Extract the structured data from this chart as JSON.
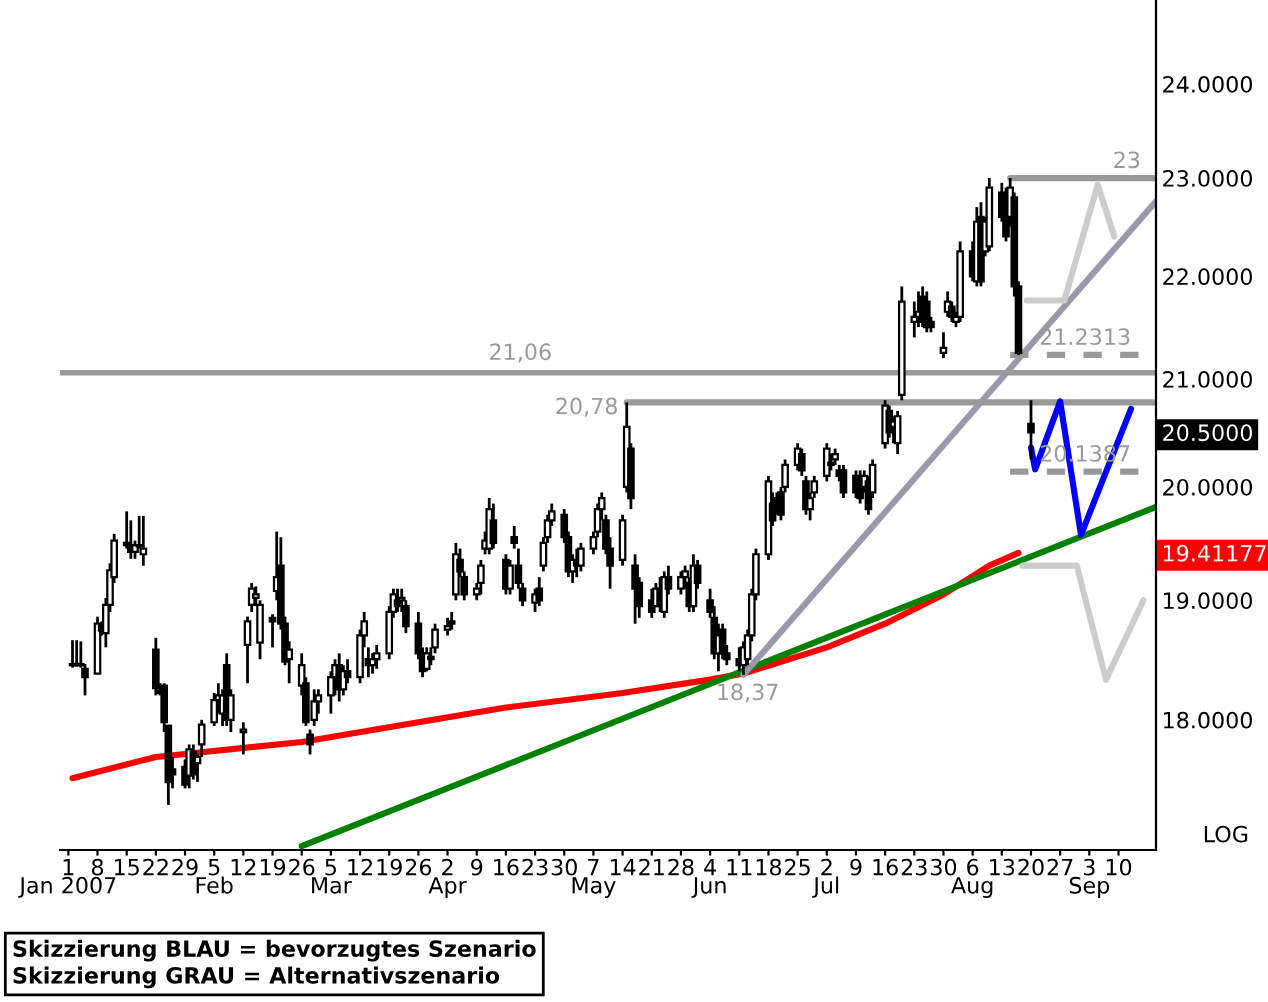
{
  "chart_data": {
    "type": "candlestick",
    "color": "#000000",
    "log": true,
    "grid": false,
    "ylim": [
      16.97,
      24.93
    ],
    "yticks": [
      {
        "value": 18,
        "label": "18.0000"
      },
      {
        "value": 19,
        "label": "19.0000"
      },
      {
        "value": 19.41177,
        "label": "19.41177"
      },
      {
        "value": 20,
        "label": "20.0000"
      },
      {
        "value": 20.5,
        "label": "20.5000"
      },
      {
        "value": 21,
        "label": "21.0000"
      },
      {
        "value": 22,
        "label": "22.0000"
      },
      {
        "value": 23,
        "label": "23.0000"
      },
      {
        "value": 24,
        "label": "24.0000"
      }
    ],
    "xlim": [
      "2006-12-30",
      "2007-09-19"
    ],
    "xticks": [
      {
        "value": "2007-01-01",
        "label": "1\nJan 2007"
      },
      {
        "value": "2007-01-08",
        "label": "8"
      },
      {
        "value": "2007-01-15",
        "label": "15"
      },
      {
        "value": "2007-01-22",
        "label": "22"
      },
      {
        "value": "2007-01-29",
        "label": "29"
      },
      {
        "value": "2007-02-05",
        "label": "5\nFeb"
      },
      {
        "value": "2007-02-12",
        "label": "12"
      },
      {
        "value": "2007-02-19",
        "label": "19"
      },
      {
        "value": "2007-02-26",
        "label": "26"
      },
      {
        "value": "2007-03-05",
        "label": "5\nMar"
      },
      {
        "value": "2007-03-12",
        "label": "12"
      },
      {
        "value": "2007-03-19",
        "label": "19"
      },
      {
        "value": "2007-03-26",
        "label": "26"
      },
      {
        "value": "2007-04-02",
        "label": "2\nApr"
      },
      {
        "value": "2007-04-09",
        "label": "9"
      },
      {
        "value": "2007-04-16",
        "label": "16"
      },
      {
        "value": "2007-04-23",
        "label": "23"
      },
      {
        "value": "2007-04-30",
        "label": "30"
      },
      {
        "value": "2007-05-07",
        "label": "7\nMay"
      },
      {
        "value": "2007-05-14",
        "label": "14"
      },
      {
        "value": "2007-05-21",
        "label": "21"
      },
      {
        "value": "2007-05-28",
        "label": "28"
      },
      {
        "value": "2007-06-04",
        "label": "4\nJun"
      },
      {
        "value": "2007-06-11",
        "label": "11"
      },
      {
        "value": "2007-06-18",
        "label": "18"
      },
      {
        "value": "2007-06-25",
        "label": "25"
      },
      {
        "value": "2007-07-02",
        "label": "2\nJul"
      },
      {
        "value": "2007-07-09",
        "label": "9"
      },
      {
        "value": "2007-07-16",
        "label": "16"
      },
      {
        "value": "2007-07-23",
        "label": "23"
      },
      {
        "value": "2007-07-30",
        "label": "30"
      },
      {
        "value": "2007-08-06",
        "label": "6\nAug"
      },
      {
        "value": "2007-08-13",
        "label": "13"
      },
      {
        "value": "2007-08-20",
        "label": "20"
      },
      {
        "value": "2007-08-27",
        "label": "27"
      },
      {
        "value": "2007-09-03",
        "label": "3\nSep"
      },
      {
        "value": "2007-09-10",
        "label": "10"
      }
    ],
    "x": [
      "2007-01-02",
      "2007-01-03",
      "2007-01-04",
      "2007-01-05",
      "2007-01-08",
      "2007-01-09",
      "2007-01-10",
      "2007-01-11",
      "2007-01-12",
      "2007-01-15",
      "2007-01-16",
      "2007-01-17",
      "2007-01-18",
      "2007-01-19",
      "2007-01-22",
      "2007-01-23",
      "2007-01-24",
      "2007-01-25",
      "2007-01-26",
      "2007-01-29",
      "2007-01-30",
      "2007-01-31",
      "2007-02-01",
      "2007-02-02",
      "2007-02-05",
      "2007-02-06",
      "2007-02-07",
      "2007-02-08",
      "2007-02-09",
      "2007-02-12",
      "2007-02-13",
      "2007-02-14",
      "2007-02-15",
      "2007-02-16",
      "2007-02-19",
      "2007-02-20",
      "2007-02-21",
      "2007-02-22",
      "2007-02-23",
      "2007-02-26",
      "2007-02-27",
      "2007-02-28",
      "2007-03-01",
      "2007-03-02",
      "2007-03-05",
      "2007-03-06",
      "2007-03-07",
      "2007-03-08",
      "2007-03-09",
      "2007-03-12",
      "2007-03-13",
      "2007-03-14",
      "2007-03-15",
      "2007-03-16",
      "2007-03-19",
      "2007-03-20",
      "2007-03-21",
      "2007-03-22",
      "2007-03-23",
      "2007-03-26",
      "2007-03-27",
      "2007-03-28",
      "2007-03-29",
      "2007-03-30",
      "2007-04-02",
      "2007-04-03",
      "2007-04-04",
      "2007-04-05",
      "2007-04-06",
      "2007-04-09",
      "2007-04-10",
      "2007-04-11",
      "2007-04-12",
      "2007-04-13",
      "2007-04-16",
      "2007-04-17",
      "2007-04-18",
      "2007-04-19",
      "2007-04-20",
      "2007-04-23",
      "2007-04-24",
      "2007-04-25",
      "2007-04-26",
      "2007-04-27",
      "2007-04-30",
      "2007-05-01",
      "2007-05-02",
      "2007-05-03",
      "2007-05-04",
      "2007-05-07",
      "2007-05-08",
      "2007-05-09",
      "2007-05-10",
      "2007-05-11",
      "2007-05-14",
      "2007-05-15",
      "2007-05-16",
      "2007-05-17",
      "2007-05-18",
      "2007-05-21",
      "2007-05-22",
      "2007-05-23",
      "2007-05-24",
      "2007-05-25",
      "2007-05-28",
      "2007-05-29",
      "2007-05-30",
      "2007-05-31",
      "2007-06-01",
      "2007-06-04",
      "2007-06-05",
      "2007-06-06",
      "2007-06-07",
      "2007-06-08",
      "2007-06-11",
      "2007-06-12",
      "2007-06-13",
      "2007-06-14",
      "2007-06-15",
      "2007-06-18",
      "2007-06-19",
      "2007-06-20",
      "2007-06-21",
      "2007-06-22",
      "2007-06-25",
      "2007-06-26",
      "2007-06-27",
      "2007-06-28",
      "2007-06-29",
      "2007-07-02",
      "2007-07-03",
      "2007-07-04",
      "2007-07-05",
      "2007-07-06",
      "2007-07-09",
      "2007-07-10",
      "2007-07-11",
      "2007-07-12",
      "2007-07-13",
      "2007-07-16",
      "2007-07-17",
      "2007-07-18",
      "2007-07-19",
      "2007-07-20",
      "2007-07-23",
      "2007-07-24",
      "2007-07-25",
      "2007-07-26",
      "2007-07-27",
      "2007-07-30",
      "2007-07-31",
      "2007-08-01",
      "2007-08-02",
      "2007-08-03",
      "2007-08-06",
      "2007-08-07",
      "2007-08-08",
      "2007-08-09",
      "2007-08-10",
      "2007-08-13",
      "2007-08-14",
      "2007-08-15",
      "2007-08-16",
      "2007-08-17",
      "2007-08-20"
    ],
    "ohlc": [
      [
        18.45,
        18.66,
        18.43,
        18.46
      ],
      [
        18.46,
        18.66,
        18.44,
        18.45
      ],
      [
        18.45,
        18.65,
        18.43,
        18.46
      ],
      [
        18.42,
        18.46,
        18.2,
        18.35
      ],
      [
        18.38,
        18.86,
        18.38,
        18.8
      ],
      [
        18.78,
        18.82,
        18.7,
        18.74
      ],
      [
        18.72,
        19.02,
        18.6,
        18.96
      ],
      [
        18.96,
        19.32,
        18.9,
        19.26
      ],
      [
        19.2,
        19.58,
        19.15,
        19.52
      ],
      [
        19.5,
        19.78,
        19.45,
        19.48
      ],
      [
        19.48,
        19.7,
        19.36,
        19.42
      ],
      [
        19.42,
        19.52,
        19.36,
        19.48
      ],
      [
        19.48,
        19.74,
        19.45,
        19.47
      ],
      [
        19.4,
        19.74,
        19.3,
        19.45
      ],
      [
        18.58,
        18.68,
        18.2,
        18.26
      ],
      [
        18.24,
        18.3,
        18.2,
        18.22
      ],
      [
        18.28,
        18.3,
        17.9,
        17.98
      ],
      [
        17.95,
        17.96,
        17.32,
        17.5
      ],
      [
        17.6,
        17.7,
        17.45,
        17.56
      ],
      [
        17.62,
        17.68,
        17.45,
        17.48
      ],
      [
        17.55,
        17.8,
        17.45,
        17.76
      ],
      [
        17.74,
        17.8,
        17.52,
        17.56
      ],
      [
        17.65,
        17.72,
        17.5,
        17.7
      ],
      [
        17.8,
        18.0,
        17.7,
        17.96
      ],
      [
        17.98,
        18.22,
        17.95,
        18.16
      ],
      [
        18.16,
        18.3,
        18.05,
        18.2
      ],
      [
        18.05,
        18.25,
        17.95,
        18.2
      ],
      [
        18.45,
        18.55,
        17.95,
        18.0
      ],
      [
        18.0,
        18.25,
        17.9,
        18.2
      ],
      [
        17.9,
        17.98,
        17.72,
        17.92
      ],
      [
        18.62,
        18.86,
        18.3,
        18.82
      ],
      [
        18.96,
        19.15,
        18.9,
        19.1
      ],
      [
        19.02,
        19.12,
        18.95,
        19.05
      ],
      [
        18.64,
        19.0,
        18.5,
        18.96
      ],
      [
        18.85,
        18.88,
        18.6,
        18.82
      ],
      [
        19.08,
        19.6,
        19.0,
        19.2
      ],
      [
        19.3,
        19.55,
        18.75,
        18.8
      ],
      [
        18.8,
        18.86,
        18.45,
        18.48
      ],
      [
        18.5,
        18.65,
        18.3,
        18.58
      ],
      [
        18.28,
        18.55,
        18.2,
        18.45
      ],
      [
        18.3,
        18.35,
        17.95,
        17.98
      ],
      [
        17.88,
        17.92,
        17.72,
        17.8
      ],
      [
        18.0,
        18.25,
        17.95,
        18.15
      ],
      [
        18.15,
        18.25,
        18.05,
        18.2
      ],
      [
        18.2,
        18.4,
        18.05,
        18.35
      ],
      [
        18.35,
        18.5,
        18.2,
        18.45
      ],
      [
        18.45,
        18.55,
        18.15,
        18.25
      ],
      [
        18.25,
        18.45,
        18.2,
        18.4
      ],
      [
        18.4,
        18.5,
        18.3,
        18.35
      ],
      [
        18.35,
        18.75,
        18.3,
        18.7
      ],
      [
        18.7,
        18.9,
        18.6,
        18.82
      ],
      [
        18.5,
        18.6,
        18.35,
        18.45
      ],
      [
        18.45,
        18.55,
        18.38,
        18.5
      ],
      [
        18.5,
        18.62,
        18.42,
        18.55
      ],
      [
        18.55,
        18.95,
        18.5,
        18.9
      ],
      [
        18.9,
        19.1,
        18.85,
        19.05
      ],
      [
        19.0,
        19.1,
        18.9,
        18.95
      ],
      [
        19.0,
        19.1,
        18.9,
        19.02
      ],
      [
        18.95,
        19.0,
        18.72,
        18.78
      ],
      [
        18.8,
        18.9,
        18.5,
        18.55
      ],
      [
        18.55,
        18.6,
        18.35,
        18.4
      ],
      [
        18.42,
        18.6,
        18.4,
        18.55
      ],
      [
        18.5,
        18.6,
        18.45,
        18.52
      ],
      [
        18.6,
        18.8,
        18.55,
        18.75
      ],
      [
        18.75,
        18.85,
        18.7,
        18.78
      ],
      [
        18.8,
        18.9,
        18.75,
        18.82
      ],
      [
        19.05,
        19.5,
        19.0,
        19.4
      ],
      [
        19.35,
        19.45,
        19.2,
        19.25
      ],
      [
        19.2,
        19.25,
        19.0,
        19.05
      ],
      [
        19.05,
        19.15,
        19.0,
        19.1
      ],
      [
        19.15,
        19.35,
        19.05,
        19.3
      ],
      [
        19.45,
        19.6,
        19.4,
        19.52
      ],
      [
        19.45,
        19.9,
        19.4,
        19.8
      ],
      [
        19.7,
        19.85,
        19.45,
        19.5
      ],
      [
        19.35,
        19.4,
        19.05,
        19.1
      ],
      [
        19.1,
        19.35,
        19.05,
        19.3
      ],
      [
        19.55,
        19.65,
        19.45,
        19.5
      ],
      [
        19.3,
        19.45,
        19.1,
        19.15
      ],
      [
        19.1,
        19.15,
        18.95,
        19.0
      ],
      [
        18.98,
        19.1,
        18.9,
        19.05
      ],
      [
        19.1,
        19.2,
        18.95,
        19.0
      ],
      [
        19.3,
        19.55,
        19.25,
        19.5
      ],
      [
        19.55,
        19.75,
        19.5,
        19.7
      ],
      [
        19.7,
        19.85,
        19.65,
        19.78
      ],
      [
        19.75,
        19.8,
        19.5,
        19.55
      ],
      [
        19.55,
        19.6,
        19.2,
        19.25
      ],
      [
        19.25,
        19.4,
        19.15,
        19.35
      ],
      [
        19.35,
        19.45,
        19.2,
        19.3
      ],
      [
        19.3,
        19.5,
        19.25,
        19.45
      ],
      [
        19.45,
        19.6,
        19.4,
        19.55
      ],
      [
        19.6,
        19.85,
        19.55,
        19.8
      ],
      [
        19.8,
        19.95,
        19.7,
        19.9
      ],
      [
        19.7,
        19.75,
        19.4,
        19.45
      ],
      [
        19.45,
        19.55,
        19.1,
        19.3
      ],
      [
        19.35,
        19.75,
        19.3,
        19.7
      ],
      [
        20.0,
        20.78,
        19.95,
        20.55
      ],
      [
        20.35,
        20.4,
        19.8,
        19.9
      ],
      [
        19.3,
        19.4,
        18.8,
        19.1
      ],
      [
        19.15,
        19.2,
        18.85,
        18.95
      ],
      [
        19.0,
        19.1,
        18.85,
        18.9
      ],
      [
        18.95,
        19.15,
        18.95,
        19.1
      ],
      [
        19.1,
        19.2,
        18.9,
        18.95
      ],
      [
        18.9,
        19.25,
        18.85,
        19.2
      ],
      [
        19.2,
        19.3,
        19.05,
        19.1
      ],
      [
        19.1,
        19.25,
        19.05,
        19.2
      ],
      [
        19.2,
        19.3,
        19.1,
        19.25
      ],
      [
        19.15,
        19.2,
        18.9,
        18.95
      ],
      [
        18.95,
        19.4,
        18.9,
        19.3
      ],
      [
        19.3,
        19.35,
        19.1,
        19.15
      ],
      [
        19.0,
        19.1,
        18.85,
        18.9
      ],
      [
        18.85,
        18.95,
        18.5,
        18.55
      ],
      [
        18.55,
        18.8,
        18.4,
        18.7
      ],
      [
        18.75,
        18.8,
        18.5,
        18.55
      ],
      [
        18.55,
        18.62,
        18.45,
        18.5
      ],
      [
        18.5,
        18.6,
        18.4,
        18.45
      ],
      [
        18.45,
        18.65,
        18.37,
        18.6
      ],
      [
        18.5,
        18.75,
        18.45,
        18.7
      ],
      [
        18.7,
        19.1,
        18.65,
        19.05
      ],
      [
        19.05,
        19.45,
        19.0,
        19.4
      ],
      [
        19.4,
        20.1,
        19.35,
        20.05
      ],
      [
        19.85,
        19.95,
        19.65,
        19.7
      ],
      [
        19.9,
        19.95,
        19.75,
        19.8
      ],
      [
        19.95,
        20.0,
        19.7,
        19.75
      ],
      [
        20.0,
        20.25,
        19.95,
        20.2
      ],
      [
        20.2,
        20.4,
        20.15,
        20.35
      ],
      [
        20.3,
        20.35,
        20.1,
        20.15
      ],
      [
        20.05,
        20.1,
        19.75,
        19.8
      ],
      [
        19.8,
        19.95,
        19.7,
        19.9
      ],
      [
        19.95,
        20.1,
        19.9,
        20.05
      ],
      [
        20.1,
        20.4,
        20.05,
        20.35
      ],
      [
        20.2,
        20.3,
        20.15,
        20.22
      ],
      [
        20.25,
        20.35,
        20.2,
        20.3
      ],
      [
        20.15,
        20.2,
        20.05,
        20.1
      ],
      [
        20.15,
        20.2,
        19.9,
        19.95
      ],
      [
        20.1,
        20.15,
        19.9,
        19.95
      ],
      [
        20.1,
        20.15,
        19.85,
        19.9
      ],
      [
        20.0,
        20.15,
        19.95,
        20.1
      ],
      [
        20.05,
        20.1,
        19.75,
        19.8
      ],
      [
        19.95,
        20.25,
        19.9,
        20.2
      ],
      [
        20.4,
        20.8,
        20.35,
        20.75
      ],
      [
        20.7,
        20.75,
        20.45,
        20.5
      ],
      [
        20.55,
        20.65,
        20.4,
        20.6
      ],
      [
        20.4,
        20.7,
        20.3,
        20.65
      ],
      [
        20.85,
        21.9,
        20.8,
        21.75
      ],
      [
        21.55,
        21.75,
        21.4,
        21.6
      ],
      [
        21.6,
        21.85,
        21.5,
        21.65
      ],
      [
        21.8,
        21.9,
        21.5,
        21.55
      ],
      [
        21.75,
        21.85,
        21.45,
        21.5
      ],
      [
        21.55,
        21.6,
        21.45,
        21.5
      ],
      [
        21.25,
        21.45,
        21.2,
        21.3
      ],
      [
        21.65,
        21.85,
        21.6,
        21.75
      ],
      [
        21.7,
        21.75,
        21.55,
        21.6
      ],
      [
        21.55,
        21.65,
        21.5,
        21.6
      ],
      [
        21.6,
        22.35,
        21.55,
        22.25
      ],
      [
        22.25,
        22.35,
        21.95,
        22.0
      ],
      [
        21.95,
        22.7,
        21.9,
        22.55
      ],
      [
        22.6,
        22.75,
        21.9,
        21.95
      ],
      [
        22.25,
        22.6,
        22.2,
        22.55
      ],
      [
        22.3,
        23.0,
        22.25,
        22.9
      ],
      [
        22.85,
        22.95,
        22.55,
        22.6
      ],
      [
        22.8,
        22.9,
        22.35,
        22.4
      ],
      [
        22.6,
        23.0,
        22.5,
        22.9
      ],
      [
        22.8,
        22.85,
        21.8,
        21.9
      ],
      [
        21.9,
        21.95,
        21.23,
        21.25
      ],
      [
        20.58,
        20.8,
        20.25,
        20.5
      ]
    ],
    "series": [
      {
        "type": "line",
        "color": "#ff0000",
        "x": [
          "2007-01-02",
          "2007-01-22",
          "2007-02-26",
          "2007-03-26",
          "2007-04-16",
          "2007-05-14",
          "2007-06-04",
          "2007-06-12",
          "2007-07-02",
          "2007-07-16",
          "2007-07-30",
          "2007-08-10",
          "2007-08-17"
        ],
        "values": [
          17.53,
          17.7,
          17.82,
          17.98,
          18.1,
          18.22,
          18.33,
          18.38,
          18.6,
          18.8,
          19.05,
          19.3,
          19.41177
        ]
      },
      {
        "type": "line",
        "color": "#008000",
        "x": [
          "2007-02-26",
          "2007-09-19"
        ],
        "values": [
          17.0,
          19.82
        ]
      },
      {
        "type": "line",
        "color": "#9999aa",
        "x": [
          "2007-06-12",
          "2007-09-19"
        ],
        "values": [
          18.37,
          22.76
        ]
      },
      {
        "type": "line",
        "color": "#999999",
        "x": [
          "2007-05-15",
          "2007-09-19"
        ],
        "values": [
          20.78,
          20.78
        ]
      },
      {
        "type": "line",
        "color": "#999999",
        "x": [
          "2007-08-15",
          "2007-09-19"
        ],
        "values": [
          23.0,
          23.0
        ]
      },
      {
        "type": "line",
        "color": "#999999",
        "line_style": "dashed",
        "x": [
          "2007-08-15",
          "2007-09-19"
        ],
        "values": [
          21.2313,
          21.2313
        ]
      },
      {
        "type": "line",
        "color": "#999999",
        "line_style": "dashed",
        "x": [
          "2007-08-15",
          "2007-09-19"
        ],
        "values": [
          20.1387,
          20.1387
        ]
      },
      {
        "type": "line",
        "color": "#0000ff",
        "x": [
          "2007-08-20",
          "2007-08-21",
          "2007-08-27",
          "2007-09-01",
          "2007-09-13"
        ],
        "values": [
          20.36,
          20.16,
          20.79,
          19.57,
          20.72
        ]
      },
      {
        "type": "line",
        "color": "#cccccc",
        "x": [
          "2007-08-19",
          "2007-08-28",
          "2007-09-05",
          "2007-09-09"
        ],
        "values": [
          21.76,
          21.76,
          22.93,
          22.4
        ]
      },
      {
        "type": "line",
        "color": "#cccccc",
        "x": [
          "2007-08-18",
          "2007-08-31",
          "2007-09-07",
          "2007-09-16"
        ],
        "values": [
          19.3,
          19.3,
          18.33,
          19.0
        ]
      }
    ],
    "ref_lines": [
      {
        "axis": "y",
        "value": 21.06,
        "label": "21,06",
        "color": "#999999"
      }
    ],
    "annotations": [
      {
        "text": "20,78",
        "x": "2007-05-15",
        "y": 20.78
      },
      {
        "text": "23",
        "x": "2007-09-12",
        "y": 23.0
      },
      {
        "text": "21.2313",
        "x": "2007-09-02",
        "y": 21.2313
      },
      {
        "text": "20.1387",
        "x": "2007-09-02",
        "y": 20.1387
      },
      {
        "text": "18,37",
        "x": "2007-06-13",
        "y": 18.37
      },
      "LOG",
      "Skizzierung BLAU = bevorzugtes Szenario",
      "Skizzierung GRAU = Alternativszenario"
    ]
  }
}
